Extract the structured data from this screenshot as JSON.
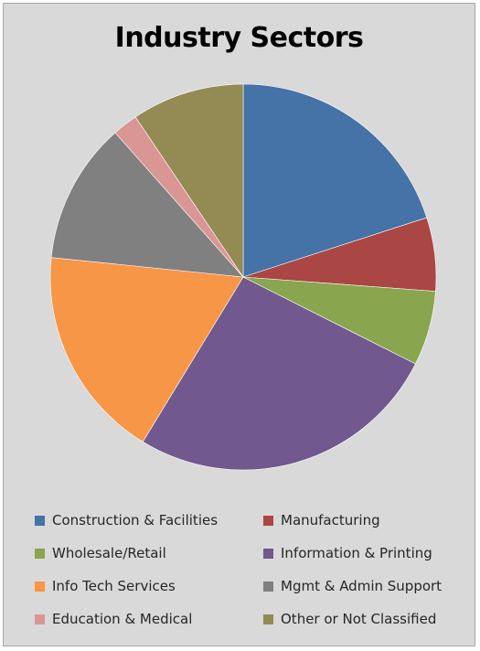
{
  "chart_data": {
    "type": "pie",
    "title": "Industry Sectors",
    "legend_position": "bottom",
    "start_angle": "12 o'clock, clockwise",
    "slices": [
      {
        "label": "Construction & Facilities",
        "value": 20.8,
        "color": "#4572a7"
      },
      {
        "label": "Manufacturing",
        "value": 6.4,
        "color": "#aa4643"
      },
      {
        "label": "Wholesale/Retail",
        "value": 6.5,
        "color": "#89a54e"
      },
      {
        "label": "Information & Printing",
        "value": 27.3,
        "color": "#71588f"
      },
      {
        "label": "Info Tech Services",
        "value": 18.6,
        "color": "#f79646"
      },
      {
        "label": "Mgmt & Admin Support",
        "value": 12.3,
        "color": "#808080"
      },
      {
        "label": "Education & Medical",
        "value": 2.2,
        "color": "#d99694"
      },
      {
        "label": "Other or Not Classified",
        "value": 9.8,
        "color": "#948a54"
      }
    ]
  }
}
